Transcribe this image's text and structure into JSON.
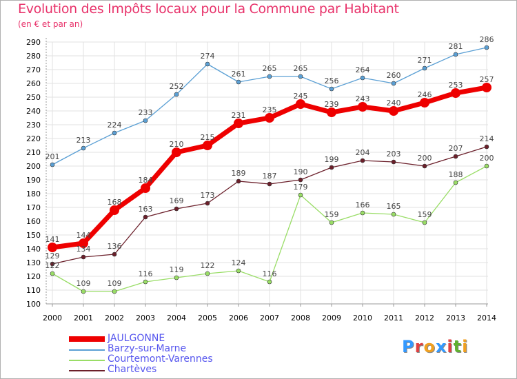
{
  "title": "Evolution des Impôts locaux pour la Commune par Habitant",
  "subtitle": "(en € et par an)",
  "logo": {
    "text": "ProXiti",
    "letters": [
      "P",
      "r",
      "o",
      "x",
      "i",
      "t",
      "i"
    ],
    "colors": [
      "#3399ff",
      "#e04040",
      "#f0a020",
      "#3399ff",
      "#e04040",
      "#60b030",
      "#f0a020"
    ]
  },
  "chart_data": {
    "type": "line",
    "title": "Evolution des Impôts locaux pour la Commune par Habitant",
    "subtitle": "(en € et par an)",
    "x": [
      "2000",
      "2001",
      "2002",
      "2003",
      "2004",
      "2005",
      "2006",
      "2007",
      "2008",
      "2009",
      "2010",
      "2011",
      "2012",
      "2013",
      "2014"
    ],
    "ylim": [
      100,
      290
    ],
    "yticks": [
      100,
      110,
      120,
      130,
      140,
      150,
      160,
      170,
      180,
      190,
      200,
      210,
      220,
      230,
      240,
      250,
      260,
      270,
      280,
      290
    ],
    "grid": true,
    "legend_position": "bottom-left",
    "series": [
      {
        "name": "JAULGONNE",
        "color": "#ee0000",
        "values": [
          141,
          144,
          168,
          184,
          210,
          215,
          231,
          235,
          245,
          239,
          243,
          240,
          246,
          253,
          257
        ]
      },
      {
        "name": "Barzy-sur-Marne",
        "color": "#5a9fd4",
        "values": [
          201,
          213,
          224,
          233,
          252,
          274,
          261,
          265,
          265,
          256,
          264,
          260,
          271,
          281,
          286
        ]
      },
      {
        "name": "Courtemont-Varennes",
        "color": "#99dd66",
        "values": [
          122,
          109,
          109,
          116,
          119,
          122,
          124,
          116,
          179,
          159,
          166,
          165,
          159,
          188,
          200
        ]
      },
      {
        "name": "Chartèves",
        "color": "#6b1f2a",
        "values": [
          129,
          134,
          136,
          163,
          169,
          173,
          189,
          187,
          190,
          199,
          204,
          203,
          200,
          207,
          214
        ]
      }
    ]
  }
}
